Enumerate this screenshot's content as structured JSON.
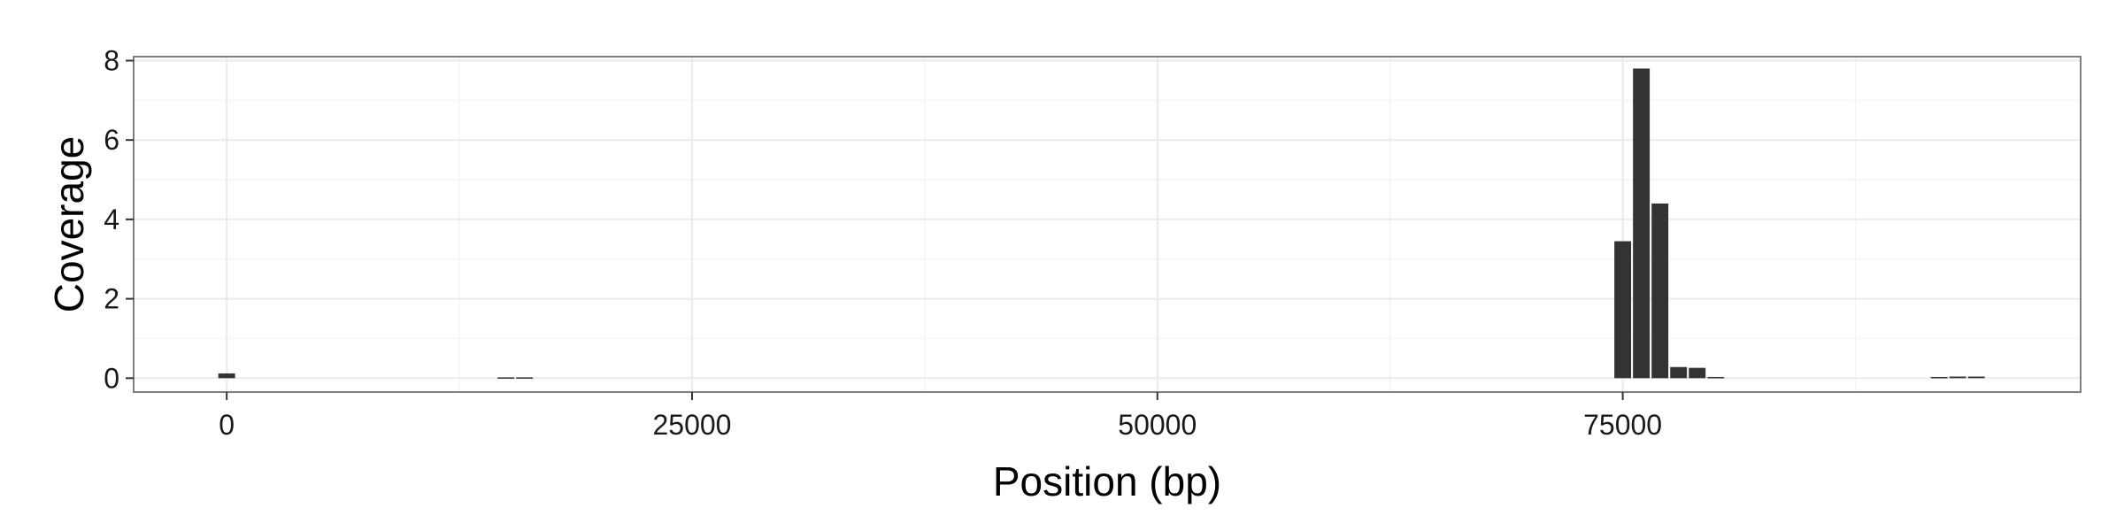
{
  "chart_data": {
    "type": "bar",
    "title": "",
    "xlabel": "Position (bp)",
    "ylabel": "Coverage",
    "xlim": [
      -5000,
      99600
    ],
    "ylim": [
      -0.35,
      8.1
    ],
    "x_ticks": [
      0,
      25000,
      50000,
      75000
    ],
    "x_tick_labels": [
      "0",
      "25000",
      "50000",
      "75000"
    ],
    "x_minor_ticks": [
      12500,
      37500,
      62500,
      87500
    ],
    "y_ticks": [
      0,
      2,
      4,
      6,
      8
    ],
    "y_tick_labels": [
      "0",
      "2",
      "4",
      "6",
      "8"
    ],
    "y_minor_ticks": [
      1,
      3,
      5,
      7
    ],
    "grid": true,
    "bin_width": 1000,
    "series": [
      {
        "x": [
          0,
          15000,
          16000,
          75000,
          76000,
          77000,
          78000,
          79000,
          80000,
          92000,
          93000,
          94000
        ],
        "values": [
          0.12,
          0.02,
          0.02,
          3.45,
          7.8,
          4.4,
          0.28,
          0.26,
          0.03,
          0.03,
          0.04,
          0.04
        ]
      }
    ],
    "colors": {
      "bar": "#333333",
      "panel_border": "#7f7f7f",
      "grid_major": "#ebebeb",
      "grid_minor": "#f4f4f4",
      "tick": "#333333"
    }
  }
}
